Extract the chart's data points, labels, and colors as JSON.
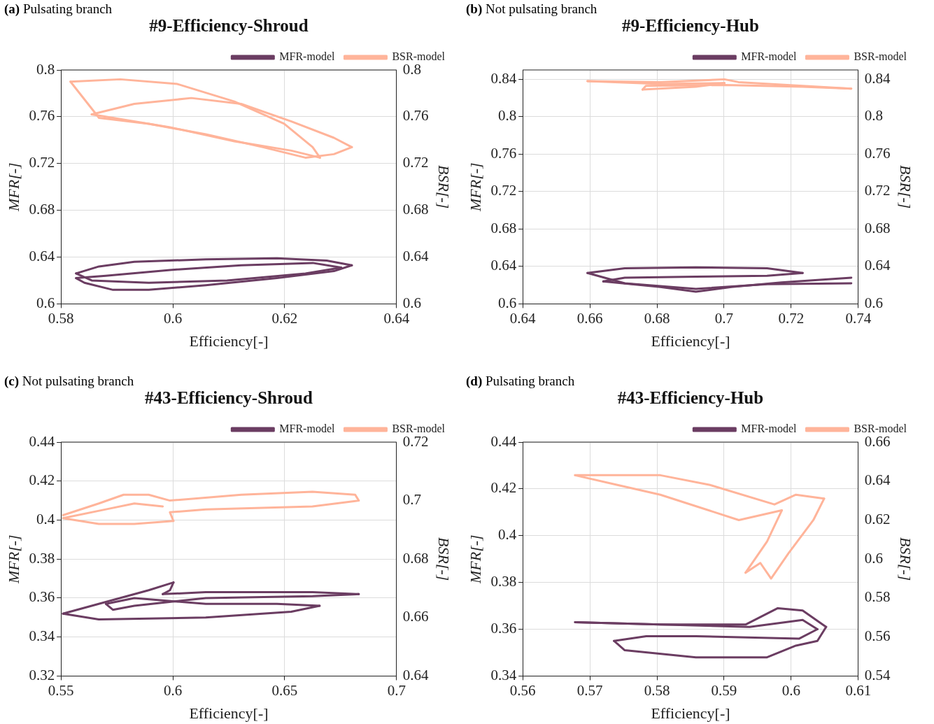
{
  "chart_data": [
    {
      "type": "line",
      "subtitle": "(a) Pulsating branch",
      "title": "#9-Efficiency-Shroud",
      "xlabel": "Efficiency[-]",
      "ylabel": "MFR[-]",
      "y2label": "BSR[-]",
      "xlim": [
        0.58,
        0.64
      ],
      "xticks": [
        0.58,
        0.6,
        0.62,
        0.64
      ],
      "ylim": [
        0.6,
        0.8
      ],
      "yticks": [
        0.6,
        0.64,
        0.68,
        0.72,
        0.76,
        0.8
      ],
      "y2lim": [
        0.6,
        0.8
      ],
      "y2ticks": [
        0.6,
        0.64,
        0.68,
        0.72,
        0.76,
        0.8
      ],
      "grid": true,
      "legend": "top right",
      "marker": "none",
      "line_style": "solid",
      "series": [
        {
          "name": "MFR-model",
          "color": "#6b3d62",
          "x": [
            0.5827,
            0.5868,
            0.5931,
            0.6059,
            0.6186,
            0.6275,
            0.632
          ],
          "values": [
            0.626,
            0.632,
            0.636,
            0.638,
            0.639,
            0.637,
            0.633
          ]
        },
        {
          "color": "#6b3d62",
          "x": [
            0.5827,
            0.5842,
            0.5893,
            0.5957,
            0.6059,
            0.6186,
            0.6288,
            0.632
          ],
          "values": [
            0.622,
            0.618,
            0.612,
            0.612,
            0.616,
            0.622,
            0.628,
            0.633
          ]
        },
        {
          "color": "#6b3d62",
          "x": [
            0.5827,
            0.588,
            0.5995,
            0.6122,
            0.625,
            0.6301
          ],
          "values": [
            0.622,
            0.624,
            0.629,
            0.633,
            0.635,
            0.631
          ]
        },
        {
          "color": "#6b3d62",
          "x": [
            0.5827,
            0.5855,
            0.5957,
            0.6097,
            0.6237,
            0.6301
          ],
          "values": [
            0.626,
            0.62,
            0.618,
            0.62,
            0.626,
            0.631
          ]
        },
        {
          "name": "BSR-model",
          "color": "#ffb49a",
          "axis": "y2",
          "x": [
            0.5855,
            0.5931,
            0.6033,
            0.6122,
            0.6212,
            0.6288,
            0.632
          ],
          "values": [
            0.762,
            0.771,
            0.776,
            0.771,
            0.756,
            0.742,
            0.734
          ]
        },
        {
          "color": "#ffb49a",
          "axis": "y2",
          "x": [
            0.5817,
            0.5868,
            0.5957,
            0.6059,
            0.6161,
            0.6237,
            0.6288,
            0.632
          ],
          "values": [
            0.79,
            0.759,
            0.754,
            0.745,
            0.734,
            0.725,
            0.728,
            0.734
          ]
        },
        {
          "color": "#ffb49a",
          "axis": "y2",
          "x": [
            0.5817,
            0.5906,
            0.6008,
            0.611,
            0.6199,
            0.625,
            0.6263
          ],
          "values": [
            0.79,
            0.792,
            0.788,
            0.773,
            0.754,
            0.734,
            0.725
          ]
        },
        {
          "color": "#ffb49a",
          "axis": "y2",
          "x": [
            0.5855,
            0.5906,
            0.5995,
            0.611,
            0.6212,
            0.6263
          ],
          "values": [
            0.762,
            0.758,
            0.751,
            0.739,
            0.731,
            0.725
          ]
        }
      ]
    },
    {
      "type": "line",
      "subtitle": "(b) Not pulsating branch",
      "title": "#9-Efficiency-Hub",
      "xlabel": "Efficiency[-]",
      "ylabel": "MFR[-]",
      "y2label": "BSR[-]",
      "xlim": [
        0.64,
        0.74
      ],
      "xticks": [
        0.64,
        0.66,
        0.68,
        0.7,
        0.72,
        0.74
      ],
      "ylim": [
        0.6,
        0.85
      ],
      "yticks": [
        0.6,
        0.64,
        0.68,
        0.72,
        0.76,
        0.8,
        0.84
      ],
      "y2lim": [
        0.6,
        0.85
      ],
      "y2ticks": [
        0.6,
        0.64,
        0.68,
        0.72,
        0.76,
        0.8,
        0.84
      ],
      "grid": true,
      "legend": "top right",
      "marker": "none",
      "line_style": "solid",
      "series": [
        {
          "name": "MFR-model",
          "color": "#6b3d62",
          "x": [
            0.6593,
            0.6704,
            0.6916,
            0.7128,
            0.7234
          ],
          "values": [
            0.633,
            0.638,
            0.639,
            0.638,
            0.633
          ]
        },
        {
          "color": "#6b3d62",
          "x": [
            0.664,
            0.6704,
            0.6916,
            0.7128,
            0.7234
          ],
          "values": [
            0.624,
            0.628,
            0.629,
            0.63,
            0.633
          ]
        },
        {
          "color": "#6b3d62",
          "x": [
            0.664,
            0.681,
            0.6916,
            0.7022,
            0.7171,
            0.7379
          ],
          "values": [
            0.624,
            0.618,
            0.613,
            0.618,
            0.623,
            0.628
          ]
        },
        {
          "color": "#6b3d62",
          "x": [
            0.6593,
            0.6704,
            0.6916,
            0.7128,
            0.7379
          ],
          "values": [
            0.633,
            0.622,
            0.616,
            0.621,
            0.622
          ]
        },
        {
          "name": "BSR-model",
          "color": "#ffb49a",
          "axis": "y2",
          "x": [
            0.6593,
            0.681,
            0.7001,
            0.7043,
            0.7234,
            0.7379
          ],
          "values": [
            0.838,
            0.837,
            0.84,
            0.837,
            0.833,
            0.83
          ]
        },
        {
          "color": "#ffb49a",
          "axis": "y2",
          "x": [
            0.6757,
            0.6767,
            0.7001,
            0.7234,
            0.7379
          ],
          "values": [
            0.829,
            0.833,
            0.834,
            0.832,
            0.83
          ]
        },
        {
          "color": "#ffb49a",
          "axis": "y2",
          "x": [
            0.6757,
            0.6916,
            0.7001
          ],
          "values": [
            0.829,
            0.832,
            0.836
          ]
        },
        {
          "color": "#ffb49a",
          "axis": "y2",
          "x": [
            0.6593,
            0.681,
            0.7001
          ],
          "values": [
            0.838,
            0.835,
            0.836
          ]
        }
      ]
    },
    {
      "type": "line",
      "subtitle": "(c) Not pulsating branch",
      "title": "#43-Efficiency-Shroud",
      "xlabel": "Efficiency[-]",
      "ylabel": "MFR[-]",
      "y2label": "BSR[-]",
      "xlim": [
        0.55,
        0.7
      ],
      "xticks": [
        0.55,
        0.6,
        0.65,
        0.7
      ],
      "ylim": [
        0.32,
        0.44
      ],
      "yticks": [
        0.32,
        0.34,
        0.36,
        0.38,
        0.4,
        0.42,
        0.44
      ],
      "y2lim": [
        0.64,
        0.72
      ],
      "y2ticks": [
        0.64,
        0.66,
        0.68,
        0.7,
        0.72
      ],
      "grid": true,
      "legend": "top right",
      "marker": "none",
      "line_style": "solid",
      "series": [
        {
          "name": "MFR-model",
          "color": "#6b3d62",
          "x": [
            0.5509,
            0.5669,
            0.5892,
            0.6003
          ],
          "values": [
            0.352,
            0.357,
            0.364,
            0.368
          ]
        },
        {
          "color": "#6b3d62",
          "x": [
            0.5955,
            0.5987,
            0.6003
          ],
          "values": [
            0.362,
            0.364,
            0.368
          ]
        },
        {
          "color": "#6b3d62",
          "x": [
            0.5955,
            0.6147,
            0.6624,
            0.6831
          ],
          "values": [
            0.362,
            0.363,
            0.363,
            0.362
          ]
        },
        {
          "color": "#6b3d62",
          "x": [
            0.5701,
            0.5732,
            0.5828,
            0.6147,
            0.6624,
            0.6831
          ],
          "values": [
            0.357,
            0.354,
            0.356,
            0.36,
            0.361,
            0.362
          ]
        },
        {
          "color": "#6b3d62",
          "x": [
            0.5701,
            0.5828,
            0.6147,
            0.6465,
            0.6656
          ],
          "values": [
            0.357,
            0.36,
            0.357,
            0.357,
            0.356
          ]
        },
        {
          "color": "#6b3d62",
          "x": [
            0.5509,
            0.5669,
            0.6147,
            0.6529,
            0.6656
          ],
          "values": [
            0.352,
            0.349,
            0.35,
            0.353,
            0.356
          ]
        },
        {
          "name": "BSR-model",
          "color": "#ffb49a",
          "axis": "y2",
          "x": [
            0.5509,
            0.5669,
            0.578,
            0.5892,
            0.5987,
            0.6306,
            0.6624,
            0.6815,
            0.6831,
            0.6624,
            0.6147,
            0.5987,
            0.6003,
            0.5828,
            0.5669,
            0.5509,
            0.5701,
            0.5828,
            0.5955
          ],
          "values": [
            0.695,
            0.699,
            0.702,
            0.702,
            0.7,
            0.702,
            0.703,
            0.702,
            0.7,
            0.698,
            0.697,
            0.696,
            0.693,
            0.692,
            0.692,
            0.694,
            0.697,
            0.699,
            0.698
          ]
        }
      ]
    },
    {
      "type": "line",
      "subtitle": "(d) Pulsating branch",
      "title": "#43-Efficiency-Hub",
      "xlabel": "Efficiency[-]",
      "ylabel": "MFR[-]",
      "y2label": "BSR[-]",
      "xlim": [
        0.56,
        0.61
      ],
      "xticks": [
        0.56,
        0.57,
        0.58,
        0.59,
        0.6,
        0.61
      ],
      "ylim": [
        0.34,
        0.44
      ],
      "yticks": [
        0.34,
        0.36,
        0.38,
        0.4,
        0.42,
        0.44
      ],
      "y2lim": [
        0.54,
        0.66
      ],
      "y2ticks": [
        0.54,
        0.56,
        0.58,
        0.6,
        0.62,
        0.64,
        0.66
      ],
      "grid": true,
      "legend": "top right",
      "marker": "none",
      "line_style": "solid",
      "series": [
        {
          "name": "MFR-model",
          "color": "#6b3d62",
          "x": [
            0.5678,
            0.5805,
            0.5932,
            0.598,
            0.6017,
            0.6052
          ],
          "values": [
            0.363,
            0.362,
            0.362,
            0.369,
            0.368,
            0.361
          ]
        },
        {
          "color": "#6b3d62",
          "x": [
            0.5736,
            0.5752,
            0.5858,
            0.5964,
            0.6007,
            0.6039,
            0.6052
          ],
          "values": [
            0.355,
            0.351,
            0.348,
            0.348,
            0.353,
            0.355,
            0.361
          ]
        },
        {
          "color": "#6b3d62",
          "x": [
            0.5736,
            0.5784,
            0.5858,
            0.6012,
            0.6039
          ],
          "values": [
            0.355,
            0.357,
            0.357,
            0.356,
            0.36
          ]
        },
        {
          "color": "#6b3d62",
          "x": [
            0.5678,
            0.5805,
            0.5938,
            0.6017,
            0.6039
          ],
          "values": [
            0.363,
            0.362,
            0.361,
            0.364,
            0.36
          ]
        },
        {
          "name": "BSR-model",
          "color": "#ffb49a",
          "axis": "y2",
          "x": [
            0.5678,
            0.5731,
            0.5805,
            0.5879,
            0.5975,
            0.6007,
            0.6049
          ],
          "values": [
            0.643,
            0.643,
            0.643,
            0.638,
            0.628,
            0.633,
            0.631
          ]
        },
        {
          "color": "#ffb49a",
          "axis": "y2",
          "x": [
            0.5932,
            0.5954,
            0.597,
            0.5996,
            0.6033,
            0.6049
          ],
          "values": [
            0.593,
            0.598,
            0.59,
            0.603,
            0.62,
            0.631
          ]
        },
        {
          "color": "#ffb49a",
          "axis": "y2",
          "x": [
            0.5932,
            0.5964,
            0.5986
          ],
          "values": [
            0.593,
            0.609,
            0.625
          ]
        },
        {
          "color": "#ffb49a",
          "axis": "y2",
          "x": [
            0.5678,
            0.5741,
            0.5805,
            0.5922,
            0.5986
          ],
          "values": [
            0.643,
            0.638,
            0.633,
            0.62,
            0.625
          ]
        }
      ]
    }
  ]
}
